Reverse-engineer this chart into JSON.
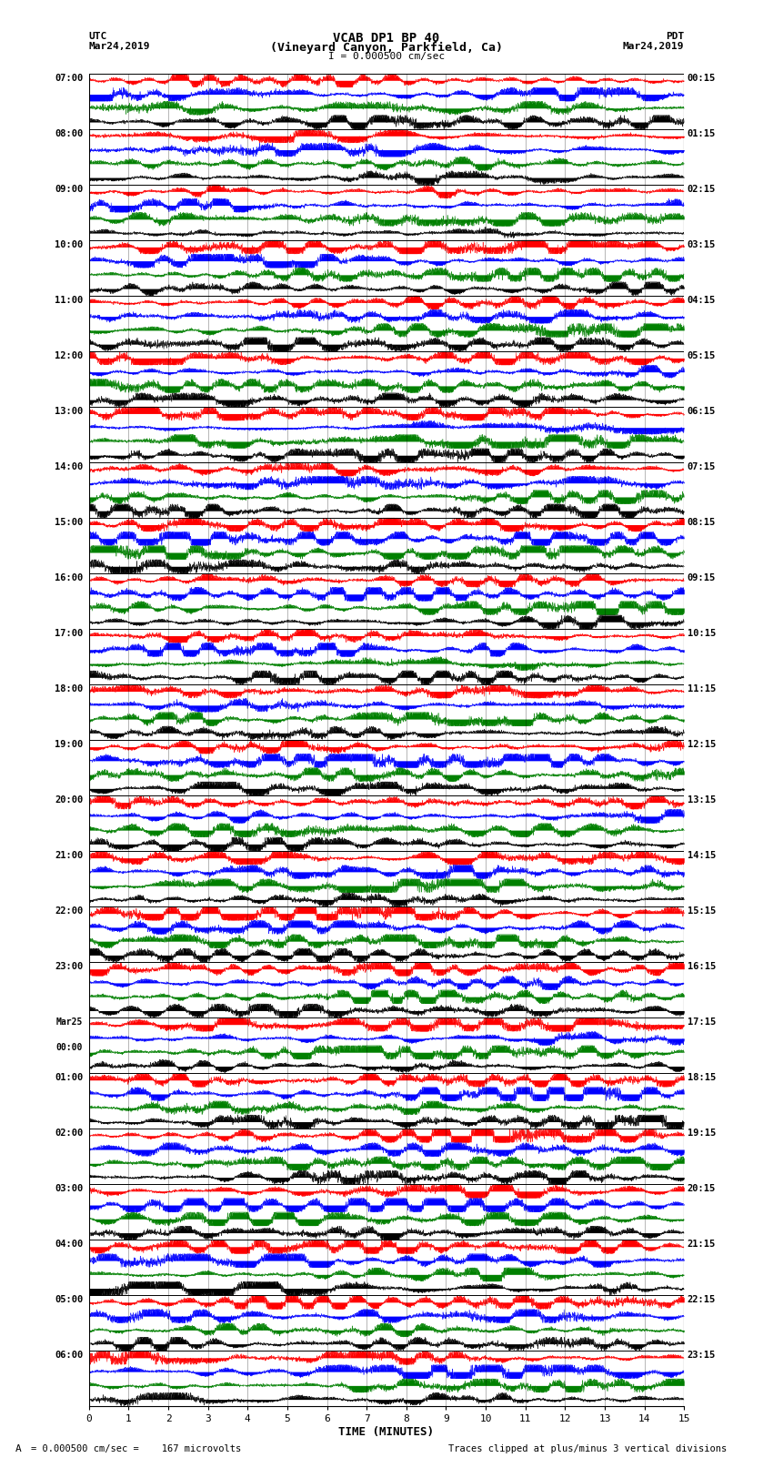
{
  "title_line1": "VCAB DP1 BP 40",
  "title_line2": "(Vineyard Canyon, Parkfield, Ca)",
  "scale_label": "I = 0.000500 cm/sec",
  "left_header_line1": "UTC",
  "left_header_line2": "Mar24,2019",
  "right_header_line1": "PDT",
  "right_header_line2": "Mar24,2019",
  "xlabel": "TIME (MINUTES)",
  "footer_left": "= 0.000500 cm/sec =    167 microvolts",
  "footer_right": "Traces clipped at plus/minus 3 vertical divisions",
  "utc_times": [
    "07:00",
    "08:00",
    "09:00",
    "10:00",
    "11:00",
    "12:00",
    "13:00",
    "14:00",
    "15:00",
    "16:00",
    "17:00",
    "18:00",
    "19:00",
    "20:00",
    "21:00",
    "22:00",
    "23:00",
    "Mar25\n00:00",
    "01:00",
    "02:00",
    "03:00",
    "04:00",
    "05:00",
    "06:00"
  ],
  "pdt_times": [
    "00:15",
    "01:15",
    "02:15",
    "03:15",
    "04:15",
    "05:15",
    "06:15",
    "07:15",
    "08:15",
    "09:15",
    "10:15",
    "11:15",
    "12:15",
    "13:15",
    "14:15",
    "15:15",
    "16:15",
    "17:15",
    "18:15",
    "19:15",
    "20:15",
    "21:15",
    "22:15",
    "23:15"
  ],
  "n_rows": 24,
  "minutes_per_row": 15,
  "colors": [
    "red",
    "blue",
    "green",
    "black"
  ],
  "bg_color": "white",
  "xlim": [
    0,
    15
  ],
  "xticks": [
    0,
    1,
    2,
    3,
    4,
    5,
    6,
    7,
    8,
    9,
    10,
    11,
    12,
    13,
    14,
    15
  ],
  "seed": 42,
  "n_points": 3000
}
